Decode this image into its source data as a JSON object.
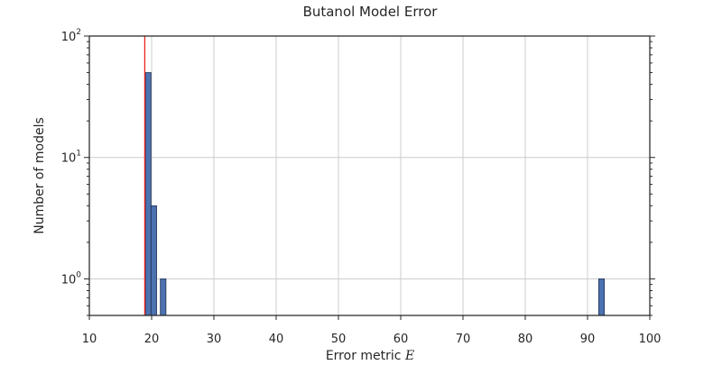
{
  "chart_data": {
    "type": "bar",
    "title": "Butanol Model Error",
    "xlabel": "Error metric E",
    "xlabel_text": "Error metric ",
    "xlabel_var": "E",
    "ylabel": "Number of models",
    "xlim": [
      10,
      100
    ],
    "ylim": [
      0.5,
      100
    ],
    "yscale": "log",
    "grid": true,
    "xticks": [
      10,
      20,
      30,
      40,
      50,
      60,
      70,
      80,
      90,
      100
    ],
    "yticks": [
      {
        "value": 1,
        "base": "10",
        "exp": "0"
      },
      {
        "value": 10,
        "base": "10",
        "exp": "1"
      },
      {
        "value": 100,
        "base": "10",
        "exp": "2"
      }
    ],
    "bars": [
      {
        "x_start": 19.0,
        "x_end": 19.9,
        "count": 50
      },
      {
        "x_start": 19.9,
        "x_end": 20.8,
        "count": 4
      },
      {
        "x_start": 21.4,
        "x_end": 22.3,
        "count": 1
      },
      {
        "x_start": 91.8,
        "x_end": 92.7,
        "count": 1
      }
    ],
    "reference_line": {
      "x": 18.9,
      "color": "#e8221c"
    },
    "bar_color": "#4c72b0"
  }
}
